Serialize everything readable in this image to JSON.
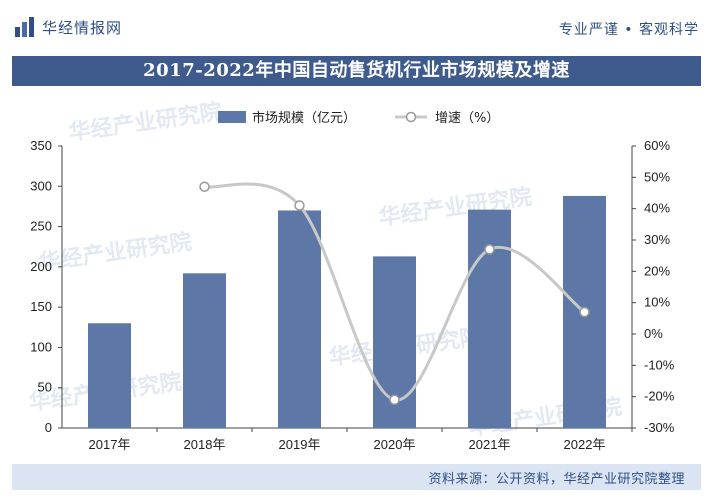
{
  "header": {
    "brand": "华经情报网",
    "slogan": "专业严谨 • 客观科学"
  },
  "watermark_text": "华经产业研究院",
  "chart_data": {
    "type": "bar+line",
    "title": "2017-2022年中国自动售货机行业市场规模及增速",
    "categories": [
      "2017年",
      "2018年",
      "2019年",
      "2020年",
      "2021年",
      "2022年"
    ],
    "series": [
      {
        "name": "市场规模（亿元）",
        "type": "bar",
        "axis": "left",
        "values": [
          130,
          192,
          270,
          213,
          271,
          288
        ],
        "color": "#5d77a6"
      },
      {
        "name": "增速（%）",
        "type": "line",
        "axis": "right",
        "values": [
          null,
          47,
          41,
          -21,
          27,
          7
        ],
        "color": "#c8c8c8"
      }
    ],
    "y_left": {
      "min": 0,
      "max": 350,
      "ticks": [
        0,
        50,
        100,
        150,
        200,
        250,
        300,
        350
      ]
    },
    "y_right": {
      "min": -30,
      "max": 60,
      "ticks": [
        -30,
        -20,
        -10,
        0,
        10,
        20,
        30,
        40,
        50,
        60
      ],
      "suffix": "%"
    },
    "legend_position": "top-center",
    "grid": false
  },
  "footer": {
    "source": "资料来源：公开资料，华经产业研究院整理"
  },
  "colors": {
    "title_band": "#3f5b8e",
    "footer_band": "#dbe4f2",
    "brand_text": "#2f4f86"
  }
}
